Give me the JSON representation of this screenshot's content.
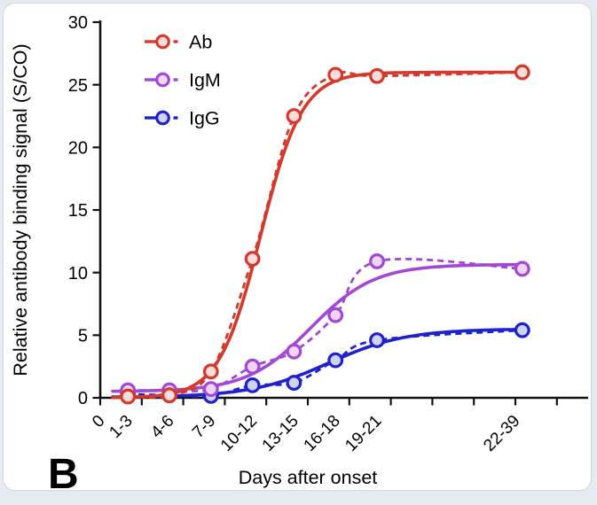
{
  "panel_label": "B",
  "chart_data": {
    "type": "line",
    "title": "",
    "xlabel": "Days after onset",
    "ylabel": "Relative antibody binding signal (S/CO)",
    "ylim": [
      0,
      30
    ],
    "yticks": [
      0,
      5,
      10,
      15,
      20,
      25,
      30
    ],
    "xlim_days": [
      0,
      35.2
    ],
    "xtick_days": [
      0,
      3,
      6,
      9,
      12,
      15,
      18,
      21,
      24,
      27,
      30,
      33
    ],
    "xtick_labels": [
      {
        "label": "0",
        "day": 0
      },
      {
        "label": "1-3",
        "day": 2
      },
      {
        "label": "4-6",
        "day": 5
      },
      {
        "label": "7-9",
        "day": 8
      },
      {
        "label": "10-12",
        "day": 11
      },
      {
        "label": "13-15",
        "day": 14
      },
      {
        "label": "16-18",
        "day": 17
      },
      {
        "label": "19-21",
        "day": 20
      },
      {
        "label": "22-39",
        "day": 30
      }
    ],
    "categories": [
      "1-3",
      "4-6",
      "7-9",
      "10-12",
      "13-15",
      "16-18",
      "19-21",
      "22-39"
    ],
    "category_days": [
      2,
      5,
      8,
      11,
      14,
      17,
      20,
      30.5
    ],
    "grid": false,
    "legend": {
      "position": "upper-left",
      "entries": [
        "Ab",
        "IgM",
        "IgG"
      ]
    },
    "line_styles": [
      "solid-fit",
      "dashed-connect"
    ],
    "series": [
      {
        "name": "Ab",
        "color": "#d43a2b",
        "fill": "#f9ddda",
        "values": [
          0.1,
          0.2,
          2.1,
          11.1,
          22.5,
          25.8,
          25.7,
          26.0
        ],
        "fit": {
          "baseline": 0.0,
          "plateau": 26.0,
          "midpoint": 11.6,
          "scale": 1.5
        }
      },
      {
        "name": "IgM",
        "color": "#a348d4",
        "fill": "#f0d5f7",
        "values": [
          0.6,
          0.6,
          0.7,
          2.5,
          3.7,
          6.6,
          10.9,
          10.3
        ],
        "fit": {
          "baseline": 0.5,
          "plateau": 10.65,
          "midpoint": 15.2,
          "scale": 2.3
        }
      },
      {
        "name": "IgG",
        "color": "#1f22cc",
        "fill": "#d0d2f2",
        "values": [
          0.3,
          0.2,
          0.15,
          1.0,
          1.2,
          3.0,
          4.6,
          5.4
        ],
        "fit": {
          "baseline": 0.05,
          "plateau": 5.5,
          "midpoint": 16.5,
          "scale": 2.8
        }
      }
    ]
  }
}
